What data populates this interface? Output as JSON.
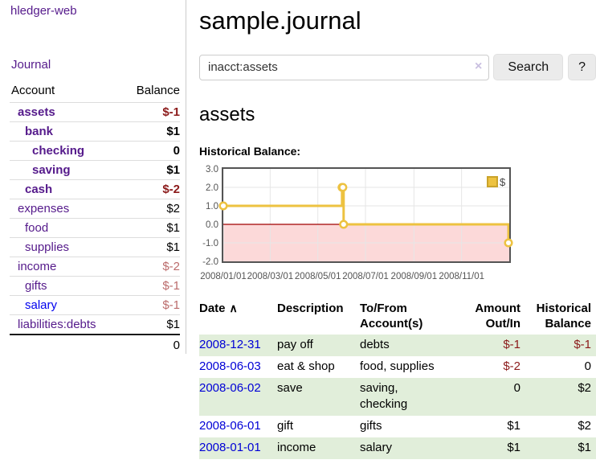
{
  "sidebar": {
    "app_title": "hledger-web",
    "nav_journal": "Journal",
    "accounts_table": {
      "col_account": "Account",
      "col_balance": "Balance",
      "rows": [
        {
          "name": "assets",
          "depth": 0,
          "bold": true,
          "balance": "$-1",
          "balance_style": "neg-strong"
        },
        {
          "name": "bank",
          "depth": 1,
          "bold": true,
          "balance": "$1",
          "balance_style": "pos"
        },
        {
          "name": "checking",
          "depth": 2,
          "bold": true,
          "balance": "0",
          "balance_style": "pos"
        },
        {
          "name": "saving",
          "depth": 2,
          "bold": true,
          "balance": "$1",
          "balance_style": "pos"
        },
        {
          "name": "cash",
          "depth": 1,
          "bold": true,
          "balance": "$-2",
          "balance_style": "neg-strong"
        },
        {
          "name": "expenses",
          "depth": 0,
          "bold": false,
          "balance": "$2",
          "balance_style": "pos"
        },
        {
          "name": "food",
          "depth": 1,
          "bold": false,
          "balance": "$1",
          "balance_style": "pos"
        },
        {
          "name": "supplies",
          "depth": 1,
          "bold": false,
          "balance": "$1",
          "balance_style": "pos"
        },
        {
          "name": "income",
          "depth": 0,
          "bold": false,
          "balance": "$-2",
          "balance_style": "neg-soft"
        },
        {
          "name": "gifts",
          "depth": 1,
          "bold": false,
          "balance": "$-1",
          "balance_style": "neg-soft"
        },
        {
          "name": "salary",
          "depth": 1,
          "bold": false,
          "balance": "$-1",
          "balance_style": "neg-soft",
          "link_style": "unvisited"
        },
        {
          "name": "liabilities:debts",
          "depth": 0,
          "bold": false,
          "balance": "$1",
          "balance_style": "pos"
        }
      ],
      "total": "0"
    }
  },
  "header": {
    "title": "sample.journal"
  },
  "search": {
    "value": "inacct:assets",
    "clear_icon": "×",
    "button_label": "Search",
    "help_label": "?"
  },
  "account_page": {
    "heading": "assets",
    "chart_label": "Historical Balance:"
  },
  "chart_data": {
    "type": "line",
    "steps": true,
    "series": [
      {
        "name": "$",
        "x": [
          "2008-01-01",
          "2008-06-01",
          "2008-06-02",
          "2008-06-03",
          "2008-12-31"
        ],
        "y": [
          1,
          2,
          2,
          0,
          -1
        ],
        "color": "#edc240"
      }
    ],
    "xrange": [
      "2008-01-01",
      "2009-01-01"
    ],
    "ylim": [
      -2,
      3
    ],
    "yticks": [
      3.0,
      2.0,
      1.0,
      0.0,
      -1.0,
      -2.0
    ],
    "xticks": [
      {
        "value": "2008-01-01",
        "label": "2008/01/01"
      },
      {
        "value": "2008-03-01",
        "label": "2008/03/01"
      },
      {
        "value": "2008-05-01",
        "label": "2008/05/01"
      },
      {
        "value": "2008-07-01",
        "label": "2008/07/01"
      },
      {
        "value": "2008-09-01",
        "label": "2008/09/01"
      },
      {
        "value": "2008-11-01",
        "label": "2008/11/01"
      }
    ],
    "legend": "$",
    "legend_position": "top-right",
    "grid": true,
    "colors": {
      "border": "#545454",
      "gridline": "#e6e6e6",
      "tick_text": "#545454",
      "negative_region": "#fcd9d9",
      "zero_line": "#a00000",
      "marker_fill": "#ffffff"
    }
  },
  "register_table": {
    "headers": {
      "date": "Date",
      "sort_icon": "∧",
      "description": "Description",
      "account": "To/From\nAccount(s)",
      "amount": "Amount\nOut/In",
      "balance": "Historical\nBalance"
    },
    "rows": [
      {
        "date": "2008-12-31",
        "description": "pay off",
        "account": "debts",
        "amount": "$-1",
        "balance": "$-1",
        "amount_neg": true,
        "balance_neg": true
      },
      {
        "date": "2008-06-03",
        "description": "eat & shop",
        "account": "food, supplies",
        "amount": "$-2",
        "balance": "0",
        "amount_neg": true,
        "balance_neg": false
      },
      {
        "date": "2008-06-02",
        "description": "save",
        "account": "saving, checking",
        "amount": "0",
        "balance": "$2",
        "amount_neg": false,
        "balance_neg": false
      },
      {
        "date": "2008-06-01",
        "description": "gift",
        "account": "gifts",
        "amount": "$1",
        "balance": "$2",
        "amount_neg": false,
        "balance_neg": false
      },
      {
        "date": "2008-01-01",
        "description": "income",
        "account": "salary",
        "amount": "$1",
        "balance": "$1",
        "amount_neg": false,
        "balance_neg": false
      }
    ]
  }
}
